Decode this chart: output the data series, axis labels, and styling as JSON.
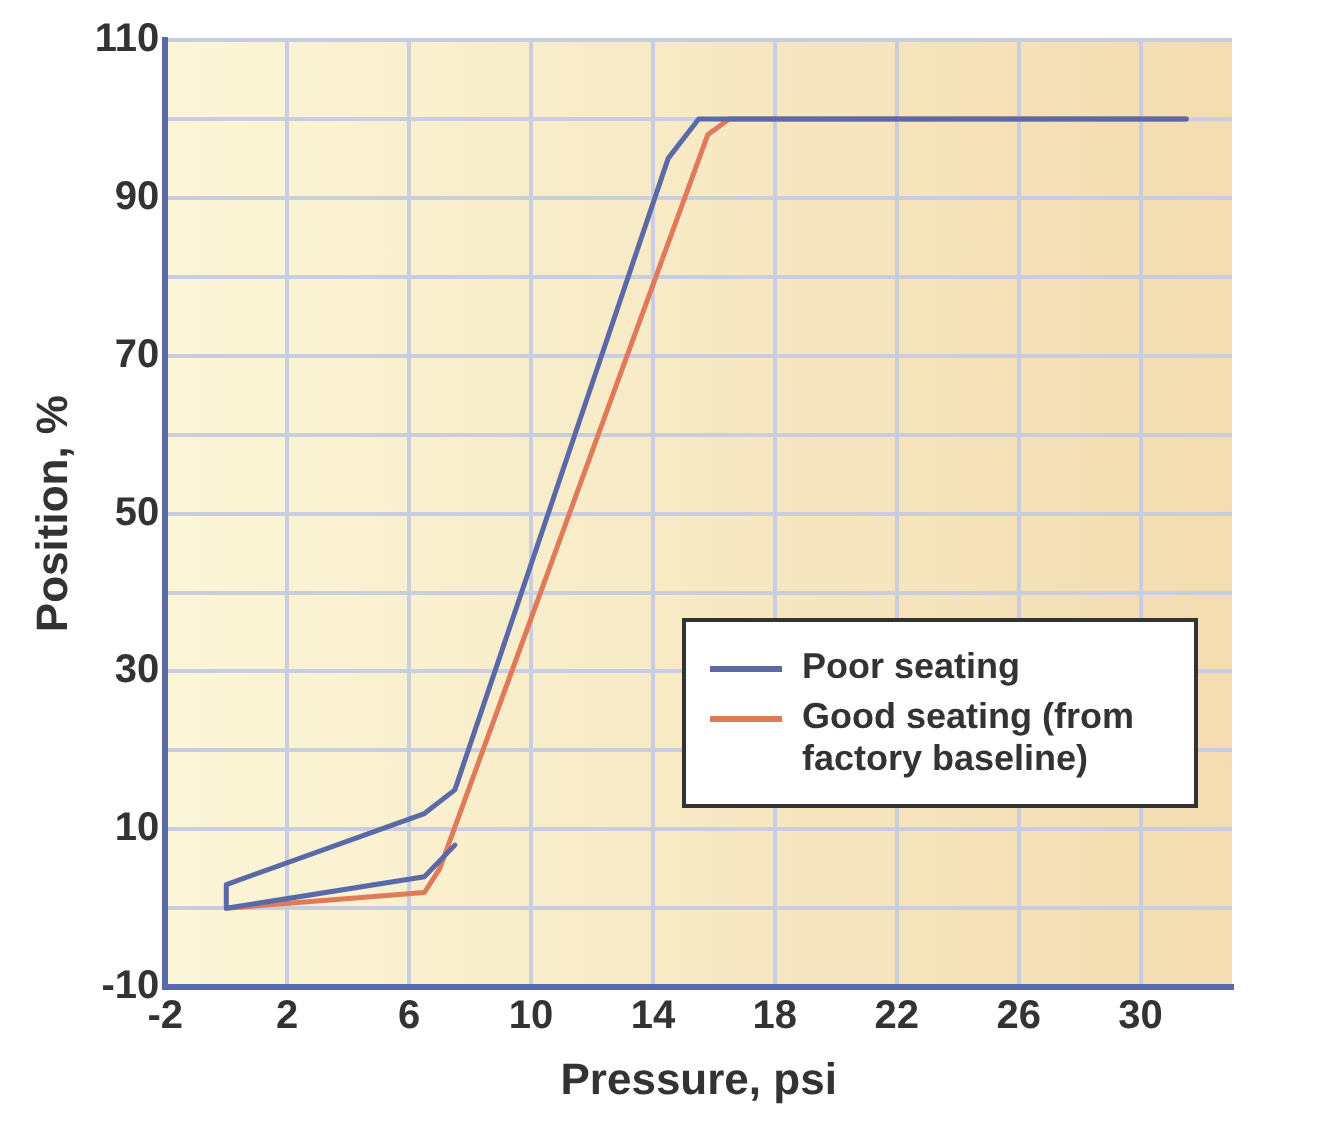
{
  "chart_data": {
    "type": "line",
    "xlabel": "Pressure, psi",
    "ylabel": "Position, %",
    "xlim": [
      -2,
      33
    ],
    "xticks": [
      -2,
      2,
      6,
      10,
      14,
      18,
      22,
      26,
      30
    ],
    "ylim": [
      -10,
      110
    ],
    "yticks": [
      -10,
      {
        "value": 0,
        "label": null
      },
      10,
      {
        "value": 20,
        "label": null
      },
      30,
      {
        "value": 40,
        "label": null
      },
      50,
      {
        "value": 60,
        "label": null
      },
      70,
      {
        "value": 80,
        "label": null
      },
      90,
      {
        "value": 100,
        "label": null
      },
      110
    ],
    "grid": true,
    "legend": "bottom right",
    "series": [
      {
        "name": "Poor seating",
        "color": "#5a6aa8",
        "x": [
          31.5,
          15.5,
          14.5,
          7.5,
          6.5,
          0,
          0,
          6.5,
          7.5
        ],
        "values": [
          100,
          100,
          95,
          15,
          12,
          3,
          0,
          4,
          8
        ]
      },
      {
        "name": "Good seating (from factory baseline)",
        "color": "#e07a5a",
        "x": [
          0,
          6.5,
          7,
          15.8,
          16.5,
          31.5
        ],
        "values": [
          0,
          2,
          5,
          98,
          100,
          100
        ]
      }
    ]
  }
}
